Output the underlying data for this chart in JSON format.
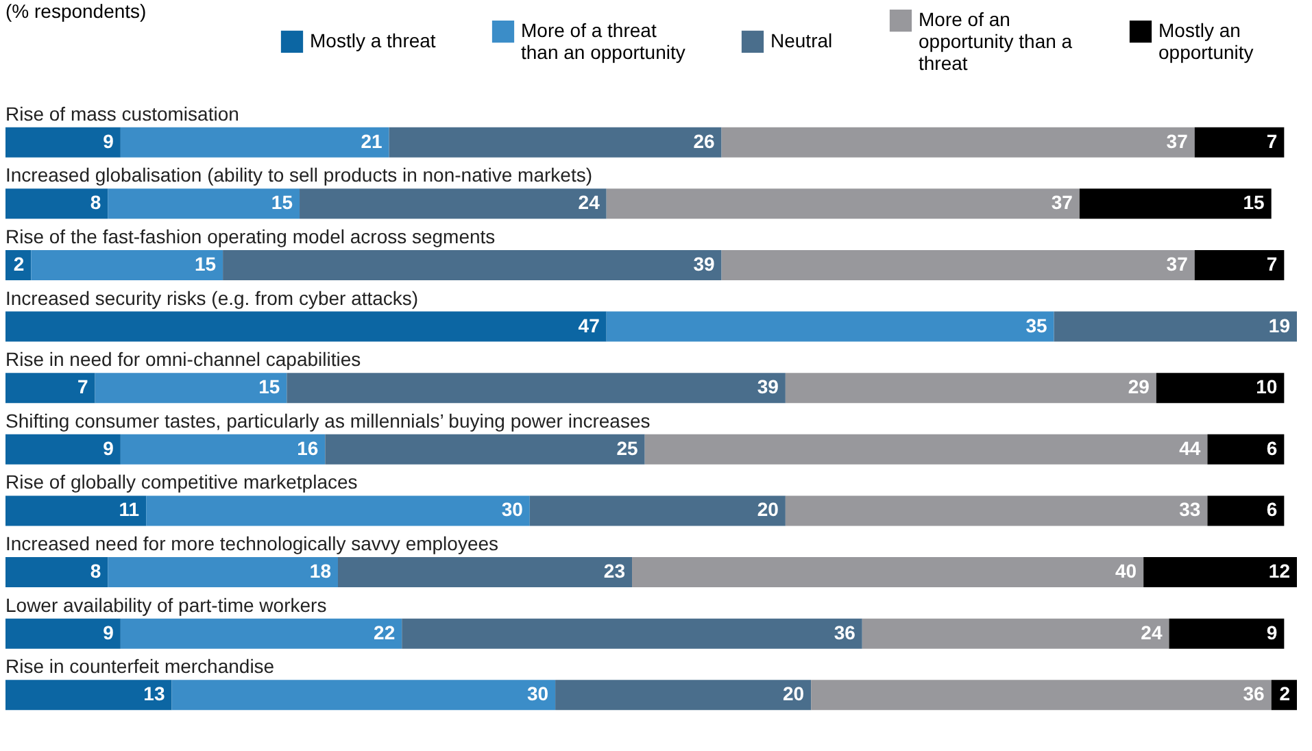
{
  "chart_data": {
    "type": "bar",
    "orientation": "horizontal",
    "stacked": true,
    "data_labels": true,
    "legend": "top",
    "annotations": [
      "(% respondents)"
    ],
    "categories": [
      "Rise of mass customisation",
      "Increased globalisation (ability to sell products in non-native markets)",
      "Rise of the fast-fashion operating model across segments",
      "Increased security risks (e.g. from cyber attacks)",
      "Rise in need for omni-channel capabilities",
      "Shifting consumer tastes, particularly as millennials’ buying power increases",
      "Rise of globally competitive marketplaces",
      "Increased need for more technologically savvy employees",
      "Lower availability of part-time workers",
      "Rise in counterfeit merchandise"
    ],
    "series": [
      {
        "name": "Mostly a threat",
        "color": "#0c66a3",
        "values": [
          9,
          8,
          2,
          47,
          7,
          9,
          11,
          8,
          9,
          13
        ]
      },
      {
        "name": "More of a threat than an opportunity",
        "color": "#3b8dc8",
        "values": [
          21,
          15,
          15,
          35,
          15,
          16,
          30,
          18,
          22,
          30
        ]
      },
      {
        "name": "Neutral",
        "color": "#4a6e8c",
        "values": [
          26,
          24,
          39,
          19,
          39,
          25,
          20,
          23,
          36,
          20
        ]
      },
      {
        "name": "More of an opportunity than a threat",
        "color": "#98989c",
        "values": [
          37,
          37,
          37,
          null,
          29,
          44,
          33,
          40,
          24,
          36
        ]
      },
      {
        "name": "Mostly an opportunity",
        "color": "#000000",
        "values": [
          7,
          15,
          7,
          null,
          10,
          6,
          6,
          12,
          9,
          2
        ]
      }
    ]
  }
}
